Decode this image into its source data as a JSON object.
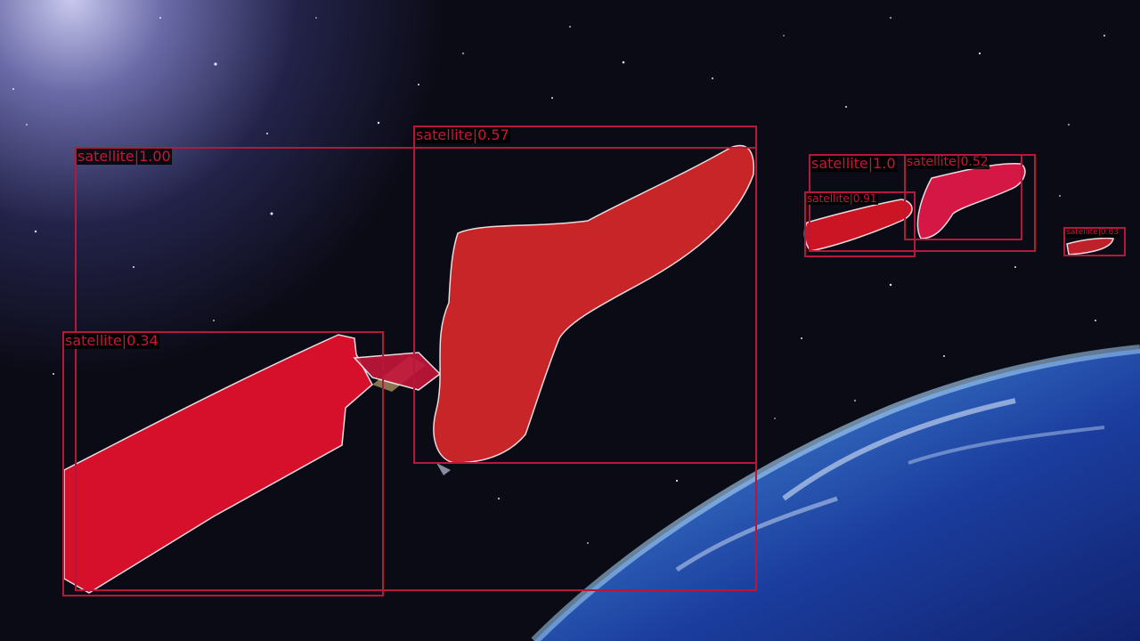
{
  "detections": [
    {
      "class": "satellite",
      "score": "1.00",
      "text": "satellite|1.00"
    },
    {
      "class": "satellite",
      "score": "0.57",
      "text": "satellite|0.57"
    },
    {
      "class": "satellite",
      "score": "0.34",
      "text": "satellite|0.34"
    },
    {
      "class": "satellite",
      "score": "1.0",
      "text": "satellite|1.0"
    },
    {
      "class": "satellite",
      "score": "0.52",
      "text": "satellite|0.52"
    },
    {
      "class": "satellite",
      "score": "0.91",
      "text": "satellite|0.91"
    },
    {
      "class": "satellite",
      "score": "0.83",
      "text": "satellite|0.83"
    }
  ],
  "colors": {
    "box": "#b5183a",
    "mask_red": "#e8102e",
    "mask_orange_red": "#d8282a",
    "space": "#0a0a12",
    "earth_blue": "#1a3fa8"
  }
}
